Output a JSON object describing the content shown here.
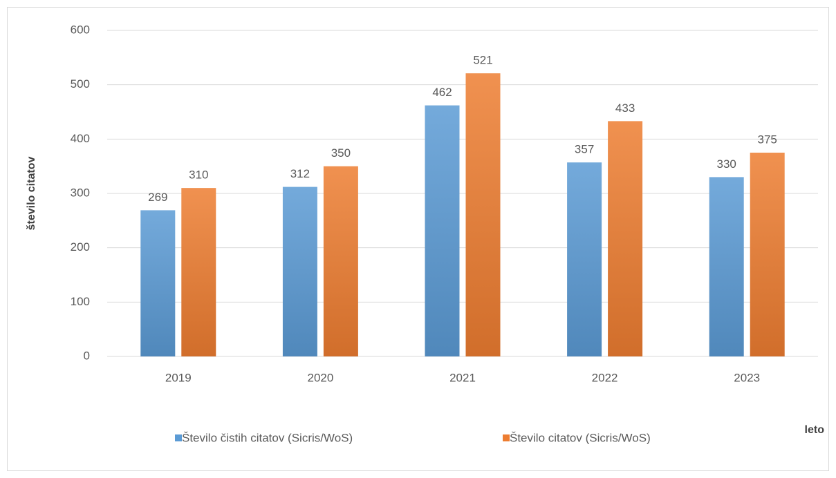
{
  "chart_data": {
    "type": "bar",
    "categories": [
      "2019",
      "2020",
      "2021",
      "2022",
      "2023"
    ],
    "series": [
      {
        "name": "Število čistih citatov (Sicris/WoS)",
        "color": "#5b9bd5",
        "values": [
          269,
          312,
          462,
          357,
          330
        ]
      },
      {
        "name": "Število citatov (Sicris/WoS)",
        "color": "#ed7d31",
        "values": [
          310,
          350,
          521,
          433,
          375
        ]
      }
    ],
    "y_label": "število citatov",
    "x_label": "leto",
    "ylim": [
      0,
      600
    ],
    "yticks": [
      0,
      100,
      200,
      300,
      400,
      500,
      600
    ],
    "grid": true,
    "legend": "bottom"
  }
}
